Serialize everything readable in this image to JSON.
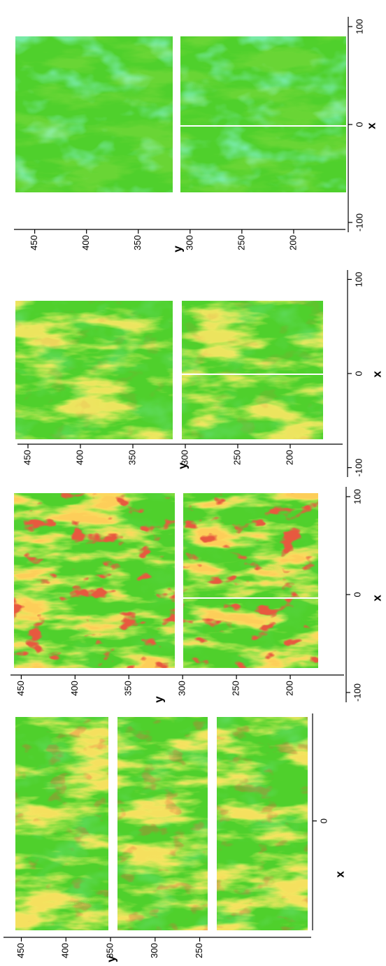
{
  "chart_data": [
    {
      "type": "contour",
      "x_label": "x",
      "y_label": "y",
      "xlim": [
        -112,
        110
      ],
      "xticks": [
        0
      ],
      "ylim": [
        125,
        470
      ],
      "yticks": [
        450,
        400,
        350,
        300,
        250
      ]
    },
    {
      "type": "contour",
      "x_label": "x",
      "y_label": "y",
      "xlim": [
        -110,
        110
      ],
      "xticks": [
        -100,
        0,
        100
      ],
      "ylim": [
        150,
        460
      ],
      "yticks": [
        450,
        400,
        350,
        300,
        250,
        200
      ]
    },
    {
      "type": "contour",
      "x_label": "x",
      "y_label": "y",
      "xlim": [
        -110,
        110
      ],
      "xticks": [
        -100,
        0,
        100
      ],
      "ylim": [
        150,
        460
      ],
      "yticks": [
        450,
        400,
        350,
        300,
        250,
        200
      ]
    },
    {
      "type": "contour",
      "x_label": "x",
      "y_label": "y",
      "xlim": [
        -110,
        110
      ],
      "xticks": [
        -100,
        0,
        100
      ],
      "ylim": [
        150,
        470
      ],
      "yticks": [
        450,
        400,
        350,
        300,
        250,
        200
      ]
    }
  ]
}
